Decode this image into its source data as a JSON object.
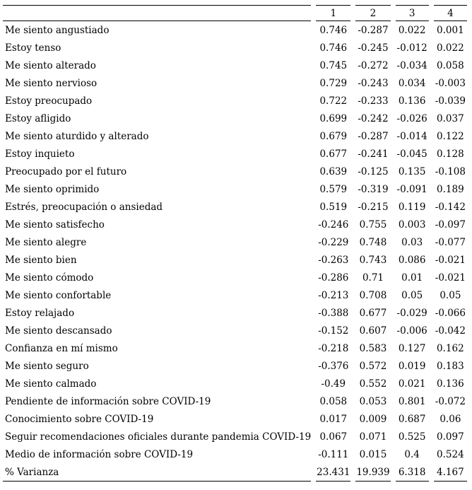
{
  "colors": {
    "background": "#ffffff",
    "text": "#000000",
    "rule": "#000000"
  },
  "table": {
    "label_column_header": "",
    "columns": [
      "1",
      "2",
      "3",
      "4"
    ],
    "rows": [
      {
        "label": "Me siento angustiado",
        "values": [
          "0.746",
          "-0.287",
          "0.022",
          "0.001"
        ]
      },
      {
        "label": "Estoy tenso",
        "values": [
          "0.746",
          "-0.245",
          "-0.012",
          "0.022"
        ]
      },
      {
        "label": "Me siento alterado",
        "values": [
          "0.745",
          "-0.272",
          "-0.034",
          "0.058"
        ]
      },
      {
        "label": "Me siento nervioso",
        "values": [
          "0.729",
          "-0.243",
          "0.034",
          "-0.003"
        ]
      },
      {
        "label": "Estoy preocupado",
        "values": [
          "0.722",
          "-0.233",
          "0.136",
          "-0.039"
        ]
      },
      {
        "label": "Estoy afligido",
        "values": [
          "0.699",
          "-0.242",
          "-0.026",
          "0.037"
        ]
      },
      {
        "label": "Me siento aturdido y alterado",
        "values": [
          "0.679",
          "-0.287",
          "-0.014",
          "0.122"
        ]
      },
      {
        "label": "Estoy inquieto",
        "values": [
          "0.677",
          "-0.241",
          "-0.045",
          "0.128"
        ]
      },
      {
        "label": "Preocupado por el futuro",
        "values": [
          "0.639",
          "-0.125",
          "0.135",
          "-0.108"
        ]
      },
      {
        "label": "Me siento oprimido",
        "values": [
          "0.579",
          "-0.319",
          "-0.091",
          "0.189"
        ]
      },
      {
        "label": "Estrés, preocupación o ansiedad",
        "values": [
          "0.519",
          "-0.215",
          "0.119",
          "-0.142"
        ]
      },
      {
        "label": "Me siento satisfecho",
        "values": [
          "-0.246",
          "0.755",
          "0.003",
          "-0.097"
        ]
      },
      {
        "label": "Me siento alegre",
        "values": [
          "-0.229",
          "0.748",
          "0.03",
          "-0.077"
        ]
      },
      {
        "label": "Me siento bien",
        "values": [
          "-0.263",
          "0.743",
          "0.086",
          "-0.021"
        ]
      },
      {
        "label": "Me siento cómodo",
        "values": [
          "-0.286",
          "0.71",
          "0.01",
          "-0.021"
        ]
      },
      {
        "label": "Me siento confortable",
        "values": [
          "-0.213",
          "0.708",
          "0.05",
          "0.05"
        ]
      },
      {
        "label": "Estoy relajado",
        "values": [
          "-0.388",
          "0.677",
          "-0.029",
          "-0.066"
        ]
      },
      {
        "label": "Me siento descansado",
        "values": [
          "-0.152",
          "0.607",
          "-0.006",
          "-0.042"
        ]
      },
      {
        "label": "Confianza en mí mismo",
        "values": [
          "-0.218",
          "0.583",
          "0.127",
          "0.162"
        ]
      },
      {
        "label": "Me siento seguro",
        "values": [
          "-0.376",
          "0.572",
          "0.019",
          "0.183"
        ]
      },
      {
        "label": "Me siento calmado",
        "values": [
          "-0.49",
          "0.552",
          "0.021",
          "0.136"
        ]
      },
      {
        "label": "Pendiente de información sobre COVID-19",
        "values": [
          "0.058",
          "0.053",
          "0.801",
          "-0.072"
        ]
      },
      {
        "label": "Conocimiento sobre COVID-19",
        "values": [
          "0.017",
          "0.009",
          "0.687",
          "0.06"
        ]
      },
      {
        "label": "Seguir recomendaciones oficiales durante pandemia COVID-19",
        "values": [
          "0.067",
          "0.071",
          "0.525",
          "0.097"
        ]
      },
      {
        "label": "Medio de información sobre COVID-19",
        "values": [
          "-0.111",
          "0.015",
          "0.4",
          "0.524"
        ]
      },
      {
        "label": "% Varianza",
        "values": [
          "23.431",
          "19.939",
          "6.318",
          "4.167"
        ]
      }
    ]
  }
}
